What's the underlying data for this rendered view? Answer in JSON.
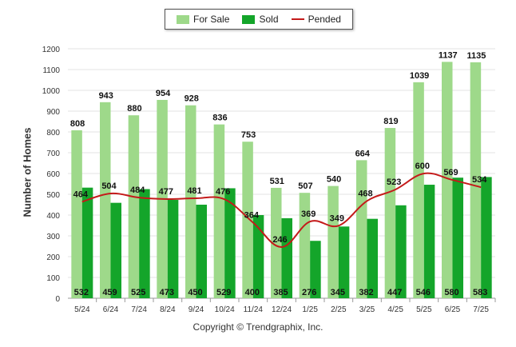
{
  "chart_data": {
    "type": "bar",
    "ylabel": "Number of Homes",
    "xlabel": "",
    "ylim": [
      0,
      1200
    ],
    "yticks": [
      0,
      100,
      200,
      300,
      400,
      500,
      600,
      700,
      800,
      900,
      1000,
      1100,
      1200
    ],
    "grid": true,
    "legend_placement": "top-center",
    "categories": [
      "5/24",
      "6/24",
      "7/24",
      "8/24",
      "9/24",
      "10/24",
      "11/24",
      "12/24",
      "1/25",
      "2/25",
      "3/25",
      "4/25",
      "5/25",
      "6/25",
      "7/25"
    ],
    "series": [
      {
        "name": "For Sale",
        "type": "bar",
        "color": "#9ed98a",
        "values": [
          808,
          943,
          880,
          954,
          928,
          836,
          753,
          531,
          507,
          540,
          664,
          819,
          1039,
          1137,
          1135
        ]
      },
      {
        "name": "Sold",
        "type": "bar",
        "color": "#14a52a",
        "values": [
          532,
          459,
          525,
          473,
          450,
          529,
          400,
          385,
          276,
          345,
          382,
          447,
          546,
          580,
          583
        ]
      },
      {
        "name": "Pended",
        "type": "line",
        "color": "#c41a1a",
        "values": [
          464,
          504,
          484,
          477,
          481,
          476,
          364,
          246,
          369,
          349,
          468,
          523,
          600,
          569,
          534
        ]
      }
    ]
  },
  "legend": {
    "for_sale": "For Sale",
    "sold": "Sold",
    "pended": "Pended"
  },
  "footer": {
    "copyright": "Copyright © Trendgraphix, Inc."
  }
}
